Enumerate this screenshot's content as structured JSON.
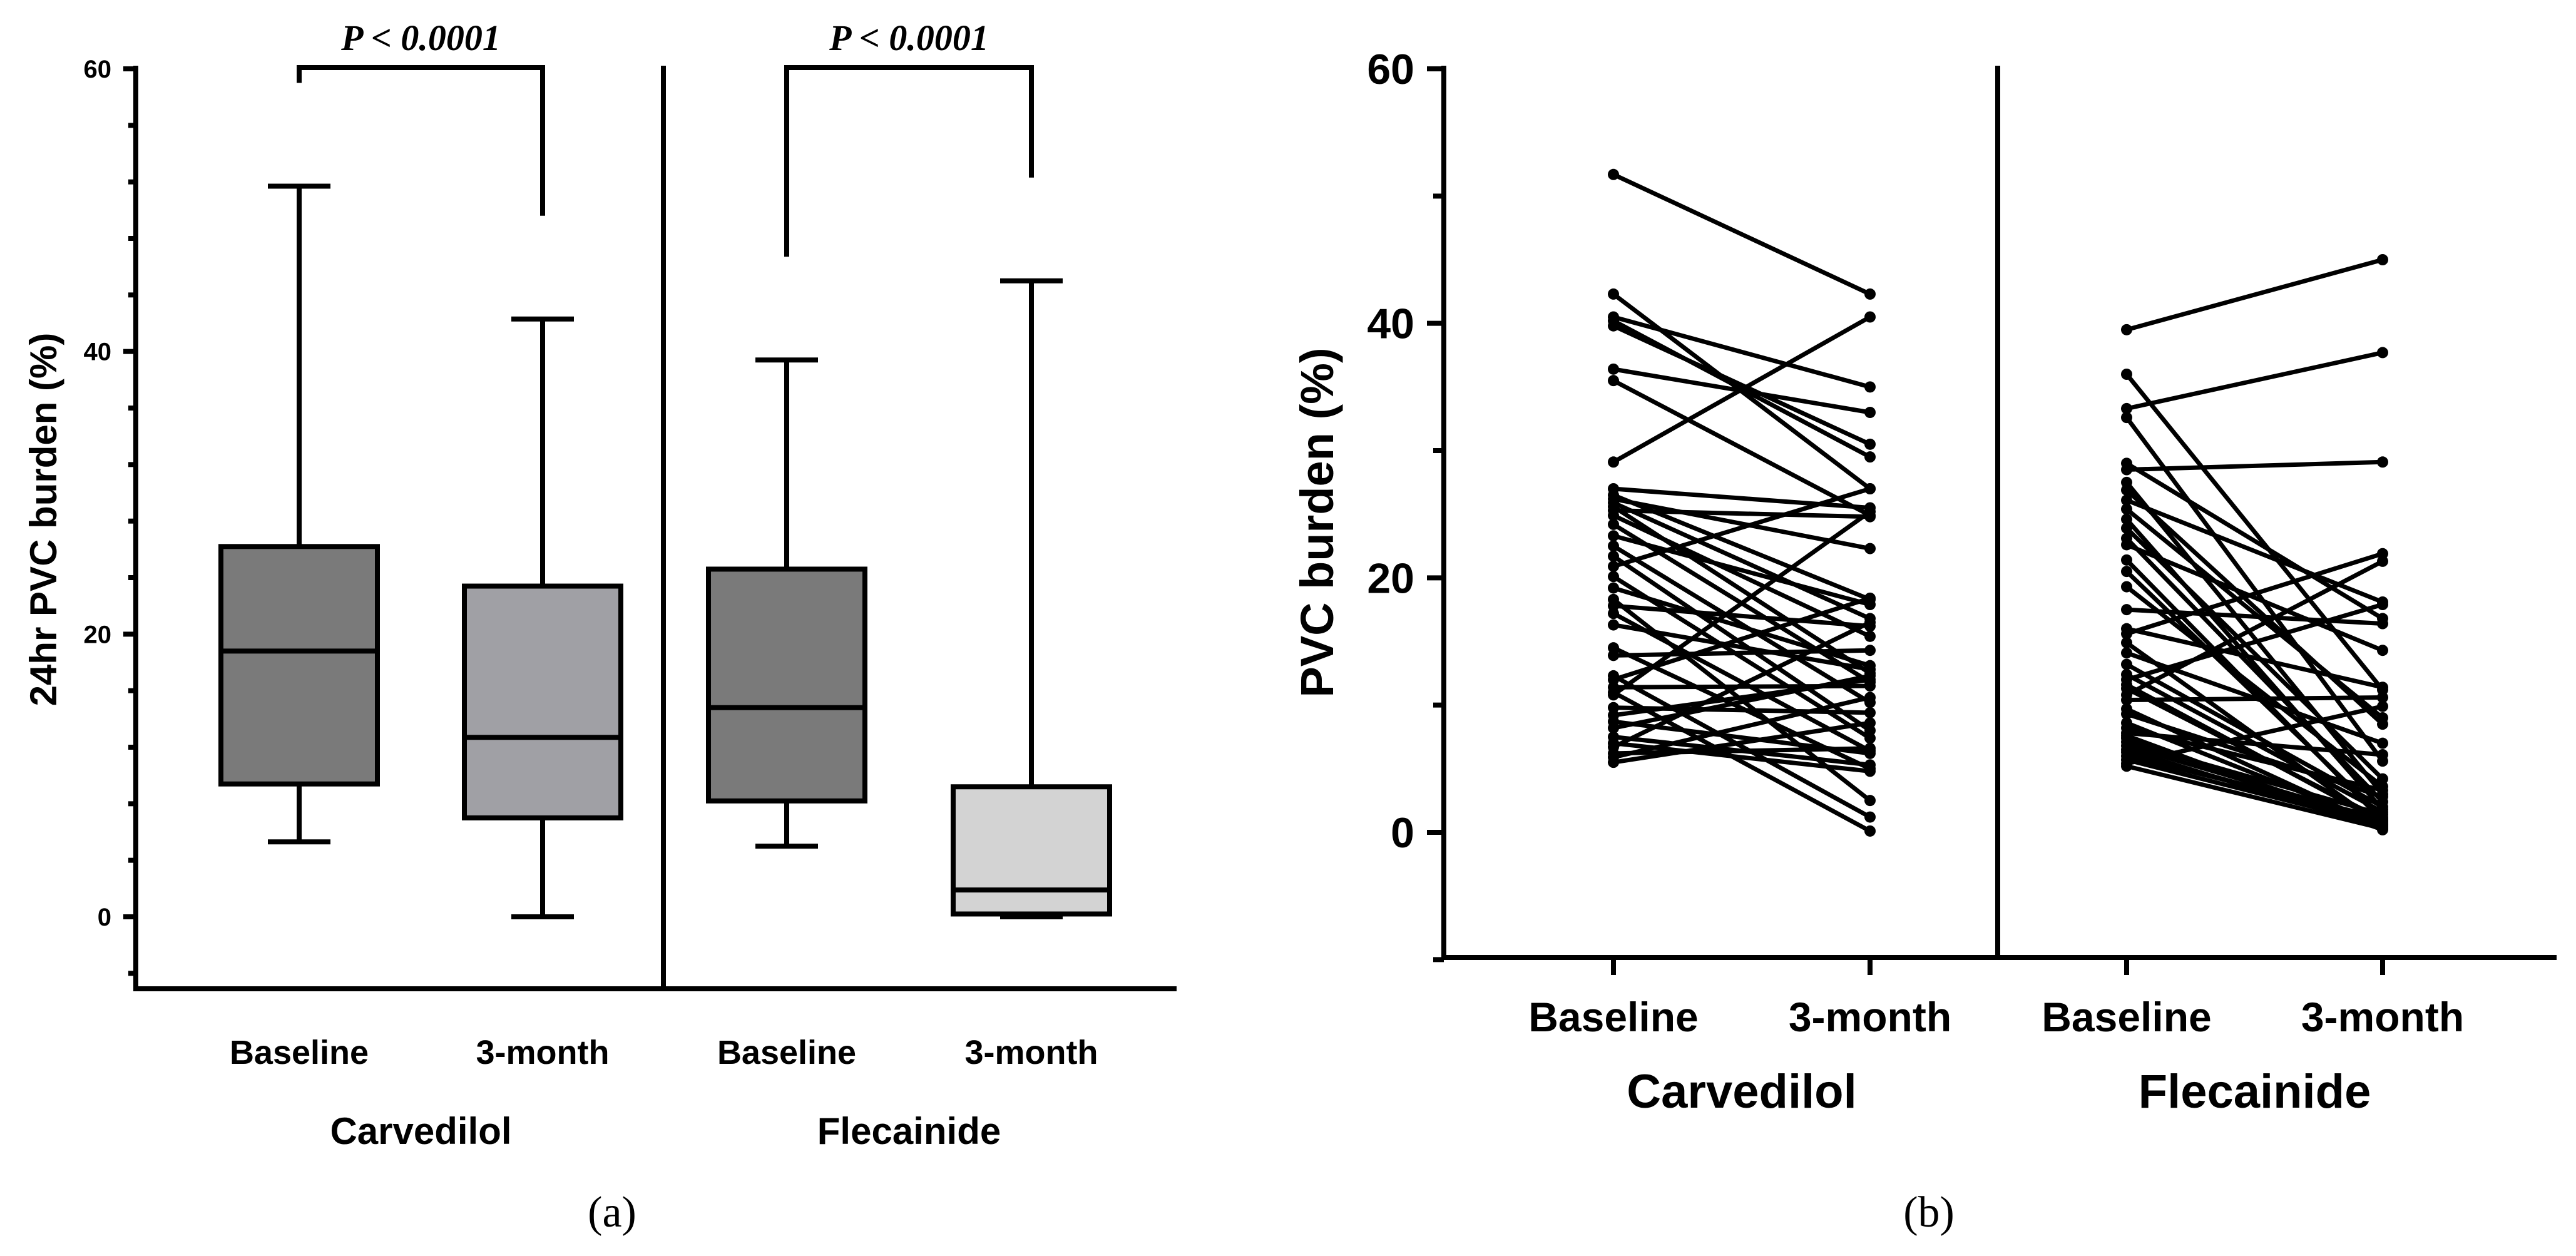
{
  "chart_data": [
    {
      "panel": "(a)",
      "type": "boxplot",
      "ylabel": "24hr PVC burden (%)",
      "ylim": [
        -4,
        60
      ],
      "yticks": [
        "0",
        "20",
        "40",
        "60"
      ],
      "groups": [
        {
          "name": "Carvedilol",
          "boxes": [
            {
              "label": "Baseline",
              "min": 5.3,
              "q1": 9.4,
              "median": 18.8,
              "q3": 26.2,
              "max": 51.7,
              "fill": "#7a7a7a"
            },
            {
              "label": "3-month",
              "min": 0.0,
              "q1": 7.0,
              "median": 12.7,
              "q3": 23.4,
              "max": 42.3,
              "fill": "#a0a0a5"
            }
          ],
          "significance": "P < 0.0001"
        },
        {
          "name": "Flecainide",
          "boxes": [
            {
              "label": "Baseline",
              "min": 5.0,
              "q1": 8.2,
              "median": 14.8,
              "q3": 24.6,
              "max": 39.4,
              "fill": "#7a7a7a"
            },
            {
              "label": "3-month",
              "min": 0.0,
              "q1": 0.2,
              "median": 1.9,
              "q3": 9.2,
              "max": 45.0,
              "fill": "#d3d3d3"
            }
          ],
          "significance": "P < 0.0001"
        }
      ]
    },
    {
      "panel": "(b)",
      "type": "paired-line",
      "ylabel": "PVC burden (%)",
      "ylim": [
        -10,
        60
      ],
      "yticks": [
        "0",
        "20",
        "40",
        "60"
      ],
      "groups": [
        {
          "name": "Carvedilol",
          "timepoints": [
            "Baseline",
            "3-month"
          ],
          "pairs": [
            [
              51.7,
              42.3
            ],
            [
              42.3,
              27.0
            ],
            [
              40.5,
              35.0
            ],
            [
              40.2,
              29.5
            ],
            [
              39.8,
              30.5
            ],
            [
              36.4,
              33.0
            ],
            [
              35.5,
              24.9
            ],
            [
              29.1,
              40.5
            ],
            [
              27.0,
              25.5
            ],
            [
              26.5,
              18.3
            ],
            [
              26.2,
              22.3
            ],
            [
              25.9,
              16.8
            ],
            [
              25.6,
              12.5
            ],
            [
              25.3,
              24.8
            ],
            [
              24.9,
              15.4
            ],
            [
              24.2,
              11.8
            ],
            [
              23.3,
              17.9
            ],
            [
              22.5,
              10.2
            ],
            [
              21.7,
              8.0
            ],
            [
              20.9,
              27.0
            ],
            [
              20.1,
              7.4
            ],
            [
              19.2,
              13.1
            ],
            [
              18.3,
              2.5
            ],
            [
              17.8,
              16.2
            ],
            [
              17.2,
              6.4
            ],
            [
              16.3,
              12.8
            ],
            [
              14.5,
              5.0
            ],
            [
              13.9,
              14.3
            ],
            [
              12.3,
              1.2
            ],
            [
              12.0,
              18.4
            ],
            [
              11.4,
              11.5
            ],
            [
              11.0,
              0.1
            ],
            [
              10.8,
              25.2
            ],
            [
              9.8,
              9.4
            ],
            [
              9.2,
              12.0
            ],
            [
              8.7,
              6.2
            ],
            [
              8.2,
              12.3
            ],
            [
              7.5,
              5.3
            ],
            [
              7.0,
              4.8
            ],
            [
              6.7,
              16.5
            ],
            [
              6.2,
              6.6
            ],
            [
              5.9,
              10.6
            ],
            [
              5.5,
              8.6
            ]
          ]
        },
        {
          "name": "Flecainide",
          "timepoints": [
            "Baseline",
            "3-month"
          ],
          "pairs": [
            [
              39.5,
              45.0
            ],
            [
              36.0,
              11.2
            ],
            [
              33.3,
              37.7
            ],
            [
              32.6,
              5.6
            ],
            [
              29.0,
              16.8
            ],
            [
              28.5,
              29.1
            ],
            [
              27.5,
              3.0
            ],
            [
              26.9,
              8.5
            ],
            [
              26.1,
              18.1
            ],
            [
              25.4,
              9.0
            ],
            [
              24.6,
              1.8
            ],
            [
              23.9,
              4.2
            ],
            [
              23.1,
              2.4
            ],
            [
              22.6,
              14.3
            ],
            [
              21.4,
              0.9
            ],
            [
              20.5,
              1.2
            ],
            [
              19.3,
              3.6
            ],
            [
              17.5,
              16.4
            ],
            [
              16.0,
              11.4
            ],
            [
              15.6,
              21.9
            ],
            [
              14.9,
              0.5
            ],
            [
              14.1,
              7.0
            ],
            [
              13.2,
              2.0
            ],
            [
              12.4,
              1.6
            ],
            [
              12.0,
              17.9
            ],
            [
              11.6,
              0.8
            ],
            [
              11.3,
              1.0
            ],
            [
              10.8,
              21.3
            ],
            [
              10.4,
              10.6
            ],
            [
              9.7,
              0.4
            ],
            [
              9.3,
              2.8
            ],
            [
              8.6,
              0.6
            ],
            [
              8.2,
              3.3
            ],
            [
              7.8,
              6.1
            ],
            [
              7.6,
              0.2
            ],
            [
              7.4,
              0.5
            ],
            [
              7.1,
              1.4
            ],
            [
              6.8,
              0.9
            ],
            [
              6.5,
              0.3
            ],
            [
              6.3,
              0.7
            ],
            [
              6.0,
              1.1
            ],
            [
              5.7,
              0.6
            ],
            [
              5.4,
              9.9
            ],
            [
              5.2,
              0.3
            ]
          ]
        }
      ]
    }
  ],
  "captions": [
    "(a)",
    "(b)"
  ]
}
